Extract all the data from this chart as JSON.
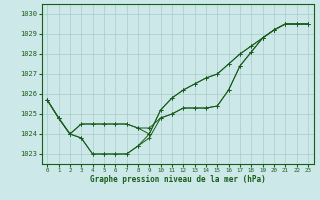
{
  "xlabel": "Graphe pression niveau de la mer (hPa)",
  "bg_color": "#cce8e8",
  "grid_color": "#aacccc",
  "line_color": "#1a5c1a",
  "ylim": [
    1022.5,
    1030.5
  ],
  "xlim": [
    -0.5,
    23.5
  ],
  "yticks": [
    1023,
    1024,
    1025,
    1026,
    1027,
    1028,
    1029,
    1030
  ],
  "xticks": [
    0,
    1,
    2,
    3,
    4,
    5,
    6,
    7,
    8,
    9,
    10,
    11,
    12,
    13,
    14,
    15,
    16,
    17,
    18,
    19,
    20,
    21,
    22,
    23
  ],
  "line_a": [
    1025.7,
    1024.8,
    1024.0,
    1023.8,
    1023.0,
    1023.0,
    1023.0,
    1023.0,
    1023.4,
    1023.8,
    1024.8,
    1025.0,
    1025.3,
    1025.3,
    1025.3,
    1025.4,
    1026.2,
    1027.4,
    1028.1,
    1028.8,
    1029.2,
    1029.5,
    1029.5,
    1029.5
  ],
  "line_b": [
    1025.7,
    1024.8,
    1024.0,
    1024.5,
    1024.5,
    1024.5,
    1024.5,
    1024.5,
    1024.3,
    1024.3,
    1024.8,
    1025.0,
    1025.3,
    1025.3,
    1025.3,
    1025.4,
    1026.2,
    1027.4,
    1028.1,
    1028.8,
    1029.2,
    1029.5,
    1029.5,
    1029.5
  ],
  "line_c": [
    1025.7,
    1024.8,
    1024.0,
    1023.8,
    1023.0,
    1023.0,
    1023.0,
    1023.0,
    1023.4,
    1024.0,
    1025.2,
    1025.8,
    1026.2,
    1026.5,
    1026.8,
    1027.0,
    1027.5,
    1028.0,
    1028.4,
    1028.8,
    1029.2,
    1029.5,
    1029.5,
    1029.5
  ],
  "line_d": [
    1025.7,
    1024.8,
    1024.0,
    1024.5,
    1024.5,
    1024.5,
    1024.5,
    1024.5,
    1024.3,
    1024.0,
    1025.2,
    1025.8,
    1026.2,
    1026.5,
    1026.8,
    1027.0,
    1027.5,
    1028.0,
    1028.4,
    1028.8,
    1029.2,
    1029.5,
    1029.5,
    1029.5
  ]
}
